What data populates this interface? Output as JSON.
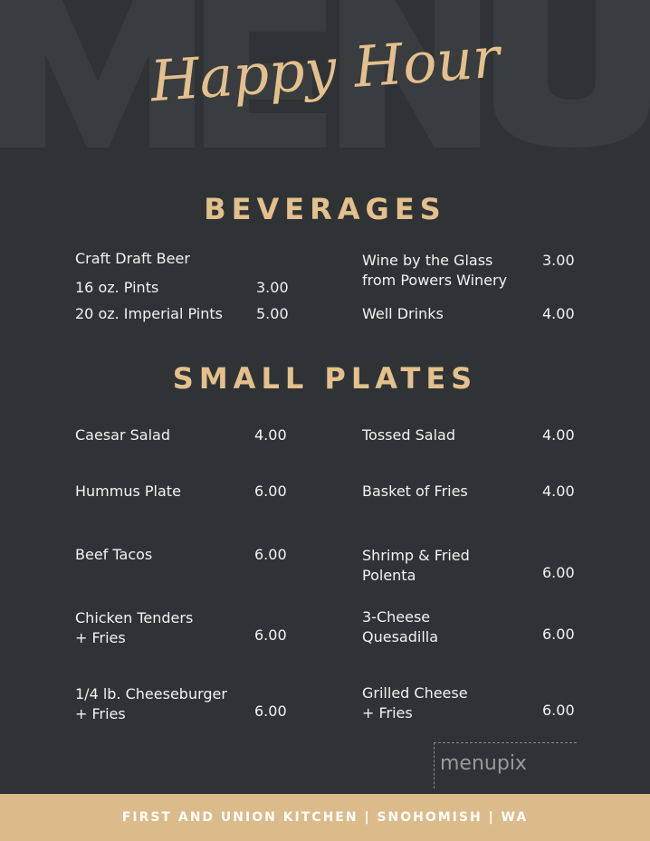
{
  "background_word": "MENU",
  "title": "Happy Hour",
  "colors": {
    "background": "#2f3335",
    "accent": "#e3c08c",
    "footer": "#dcbb8a"
  },
  "beverages": {
    "heading": "BEVERAGES",
    "left": [
      {
        "name": "Craft Draft Beer",
        "price": ""
      },
      {
        "name": "16 oz. Pints",
        "price": "3.00"
      },
      {
        "name": "20 oz. Imperial Pints",
        "price": "5.00"
      }
    ],
    "right": [
      {
        "name": "Wine by the Glass\nfrom Powers Winery",
        "price": "3.00"
      },
      {
        "name": "Well Drinks",
        "price": "4.00"
      }
    ]
  },
  "small_plates": {
    "heading": "SMALL PLATES",
    "left": [
      {
        "name": "Caesar Salad",
        "price": "4.00"
      },
      {
        "name": "Hummus Plate",
        "price": "6.00"
      },
      {
        "name": "Beef Tacos",
        "price": "6.00"
      },
      {
        "name": "Chicken Tenders\n+ Fries",
        "price": "6.00"
      },
      {
        "name": "1/4 lb. Cheeseburger\n+ Fries",
        "price": "6.00"
      }
    ],
    "right": [
      {
        "name": "Tossed Salad",
        "price": "4.00"
      },
      {
        "name": "Basket of Fries",
        "price": "4.00"
      },
      {
        "name": "Shrimp & Fried\nPolenta",
        "price": "6.00"
      },
      {
        "name": "3-Cheese\nQuesadilla",
        "price": "6.00"
      },
      {
        "name": "Grilled Cheese\n+ Fries",
        "price": "6.00"
      }
    ]
  },
  "watermark": "menupix",
  "footer": "FIRST AND UNION KITCHEN | SNOHOMISH | WA"
}
